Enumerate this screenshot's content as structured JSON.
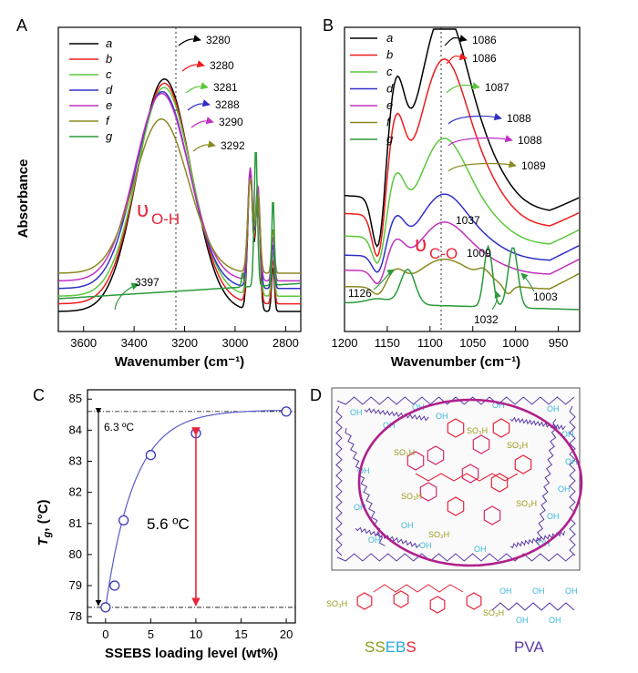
{
  "panels": {
    "a": {
      "label": "A",
      "ylabel": "Absorbance",
      "xlabel": "Wavenumber (cm⁻¹)",
      "xticks": [
        "3600",
        "3400",
        "3200",
        "3000",
        "2800"
      ],
      "legend": [
        "a",
        "b",
        "c",
        "d",
        "e",
        "f",
        "g"
      ],
      "peaks": [
        "3280",
        "3280",
        "3281",
        "3288",
        "3290",
        "3292"
      ],
      "g_peak": "3397",
      "band_main": "υ",
      "band_sub": "O-H"
    },
    "b": {
      "label": "B",
      "ylabel": "Absorbance",
      "xlabel": "Wavenumber (cm⁻¹)",
      "xticks": [
        "1200",
        "1150",
        "1100",
        "1050",
        "1000",
        "950"
      ],
      "legend": [
        "a",
        "b",
        "c",
        "d",
        "e",
        "f",
        "g"
      ],
      "peaks": [
        "1086",
        "1086",
        "1087",
        "1088",
        "1088",
        "1089"
      ],
      "f_peaks": [
        "1037",
        "1009"
      ],
      "g_peaks": [
        "1126",
        "1032",
        "1003"
      ],
      "band_main": "υ",
      "band_sub": "C-O"
    },
    "c": {
      "label": "C",
      "ylabel_main": "T",
      "ylabel_sub": "g",
      "ylabel_unit": ", (°C)",
      "xlabel": "SSEBS loading level (wt%)",
      "xticks": [
        "0",
        "5",
        "10",
        "15",
        "20"
      ],
      "yticks": [
        "78",
        "79",
        "80",
        "81",
        "82",
        "83",
        "84",
        "85"
      ],
      "ann_total": "6.3 ºC",
      "ann_delta": "5.6 ºC"
    },
    "d": {
      "label": "D",
      "legend_ssebs": [
        "S",
        "S",
        "E",
        "B",
        "S"
      ],
      "legend_pva": "PVA",
      "so3h": "SO₃H",
      "oh": "OH",
      "h": "H",
      "o": "O"
    }
  },
  "colors": {
    "a": "#000000",
    "b": "#ee1c1c",
    "c": "#5cc83c",
    "d": "#3030c8",
    "e": "#c030c0",
    "f": "#8a8a20",
    "g": "#2a9a3a",
    "ssebs_s": "#8a9a20",
    "ssebs_e": "#29a8d8",
    "ssebs_b": "#e8243c",
    "pva": "#5a3aa8",
    "ring": "#b0208c",
    "so3h": "#9a9a1a",
    "oh": "#3ab8d8"
  },
  "chart_data": [
    {
      "type": "line",
      "panel": "A",
      "xlabel": "Wavenumber (cm⁻¹)",
      "ylabel": "Absorbance",
      "xlim": [
        3700,
        2740
      ],
      "x_reversed": true,
      "series": [
        {
          "name": "a",
          "peak_x": 3280,
          "peak_height": 0.98,
          "ch_height": 0.55
        },
        {
          "name": "b",
          "peak_x": 3280,
          "peak_height": 0.93,
          "ch_height": 0.52
        },
        {
          "name": "c",
          "peak_x": 3281,
          "peak_height": 0.88,
          "ch_height": 0.5
        },
        {
          "name": "d",
          "peak_x": 3288,
          "peak_height": 0.83,
          "ch_height": 0.46
        },
        {
          "name": "e",
          "peak_x": 3290,
          "peak_height": 0.79,
          "ch_height": 0.44
        },
        {
          "name": "f",
          "peak_x": 3292,
          "peak_height": 0.65,
          "ch_height": 0.37
        },
        {
          "name": "g",
          "peak_x": 3397,
          "peak_height": 0.06,
          "ch_height": 0.33
        }
      ]
    },
    {
      "type": "line",
      "panel": "B",
      "xlabel": "Wavenumber (cm⁻¹)",
      "ylabel": "Absorbance",
      "xlim": [
        1200,
        925
      ],
      "x_reversed": true,
      "series": [
        {
          "name": "a",
          "peak_x": 1086
        },
        {
          "name": "b",
          "peak_x": 1086
        },
        {
          "name": "c",
          "peak_x": 1087
        },
        {
          "name": "d",
          "peak_x": 1088
        },
        {
          "name": "e",
          "peak_x": 1088
        },
        {
          "name": "f",
          "peak_x": 1089
        },
        {
          "name": "g",
          "peak_x": [
            1126,
            1032,
            1003
          ]
        }
      ]
    },
    {
      "type": "scatter",
      "panel": "C",
      "xlabel": "SSEBS loading level (wt%)",
      "ylabel": "Tg, (°C)",
      "xlim": [
        -2,
        21
      ],
      "ylim": [
        77.8,
        85.3
      ],
      "x": [
        0,
        1,
        2,
        5,
        10,
        20
      ],
      "y": [
        78.3,
        79.0,
        81.1,
        83.2,
        83.9,
        84.6
      ],
      "fit": "saturating curve",
      "annotations": [
        {
          "text": "6.3 ºC",
          "from": 78.3,
          "to": 84.6
        },
        {
          "text": "5.6 ºC",
          "from": 78.3,
          "to": 83.9
        }
      ]
    }
  ]
}
